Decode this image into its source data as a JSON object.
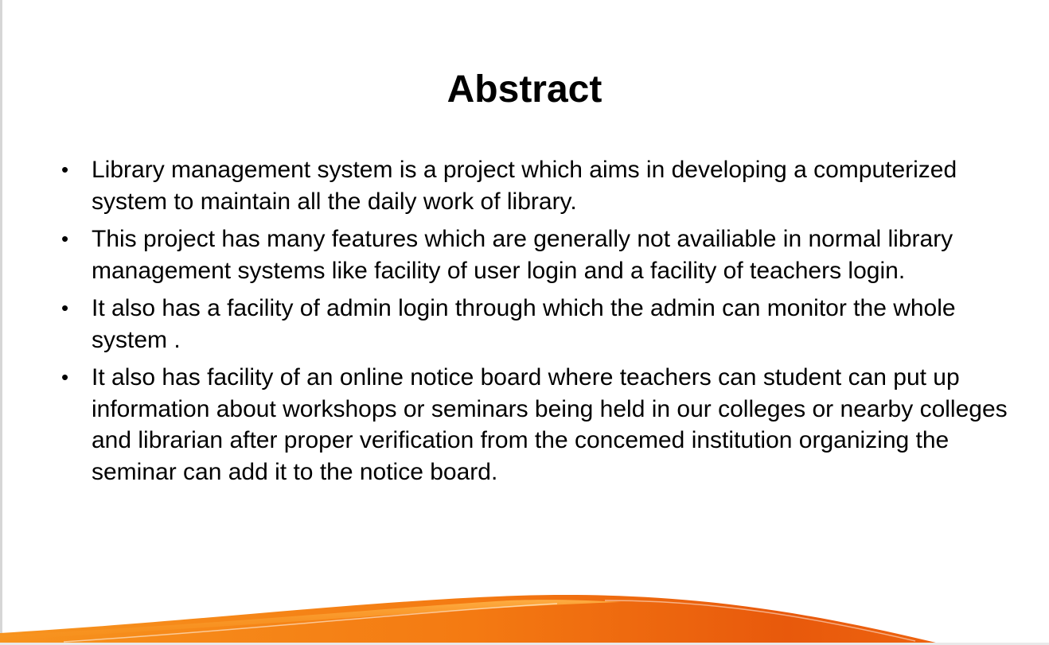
{
  "slide": {
    "title": "Abstract",
    "bullet_glyph": "•",
    "bullets": [
      "Library management system is a project which aims in developing a computerized system to maintain all the daily work of library.",
      "This project has many features which are generally not availiable in normal library management systems like facility of user login and a facility of teachers login.",
      "It also has a facility of admin login through which the admin can monitor the whole system .",
      "It also has facility of an online notice board where teachers can student can put up information about workshops or seminars being held in our colleges or nearby colleges and librarian after proper verification from the concemed institution organizing the seminar can add it to the notice board."
    ],
    "colors": {
      "accent_dark": "#e8590c",
      "accent_light": "#f7931e",
      "text": "#000000"
    }
  }
}
